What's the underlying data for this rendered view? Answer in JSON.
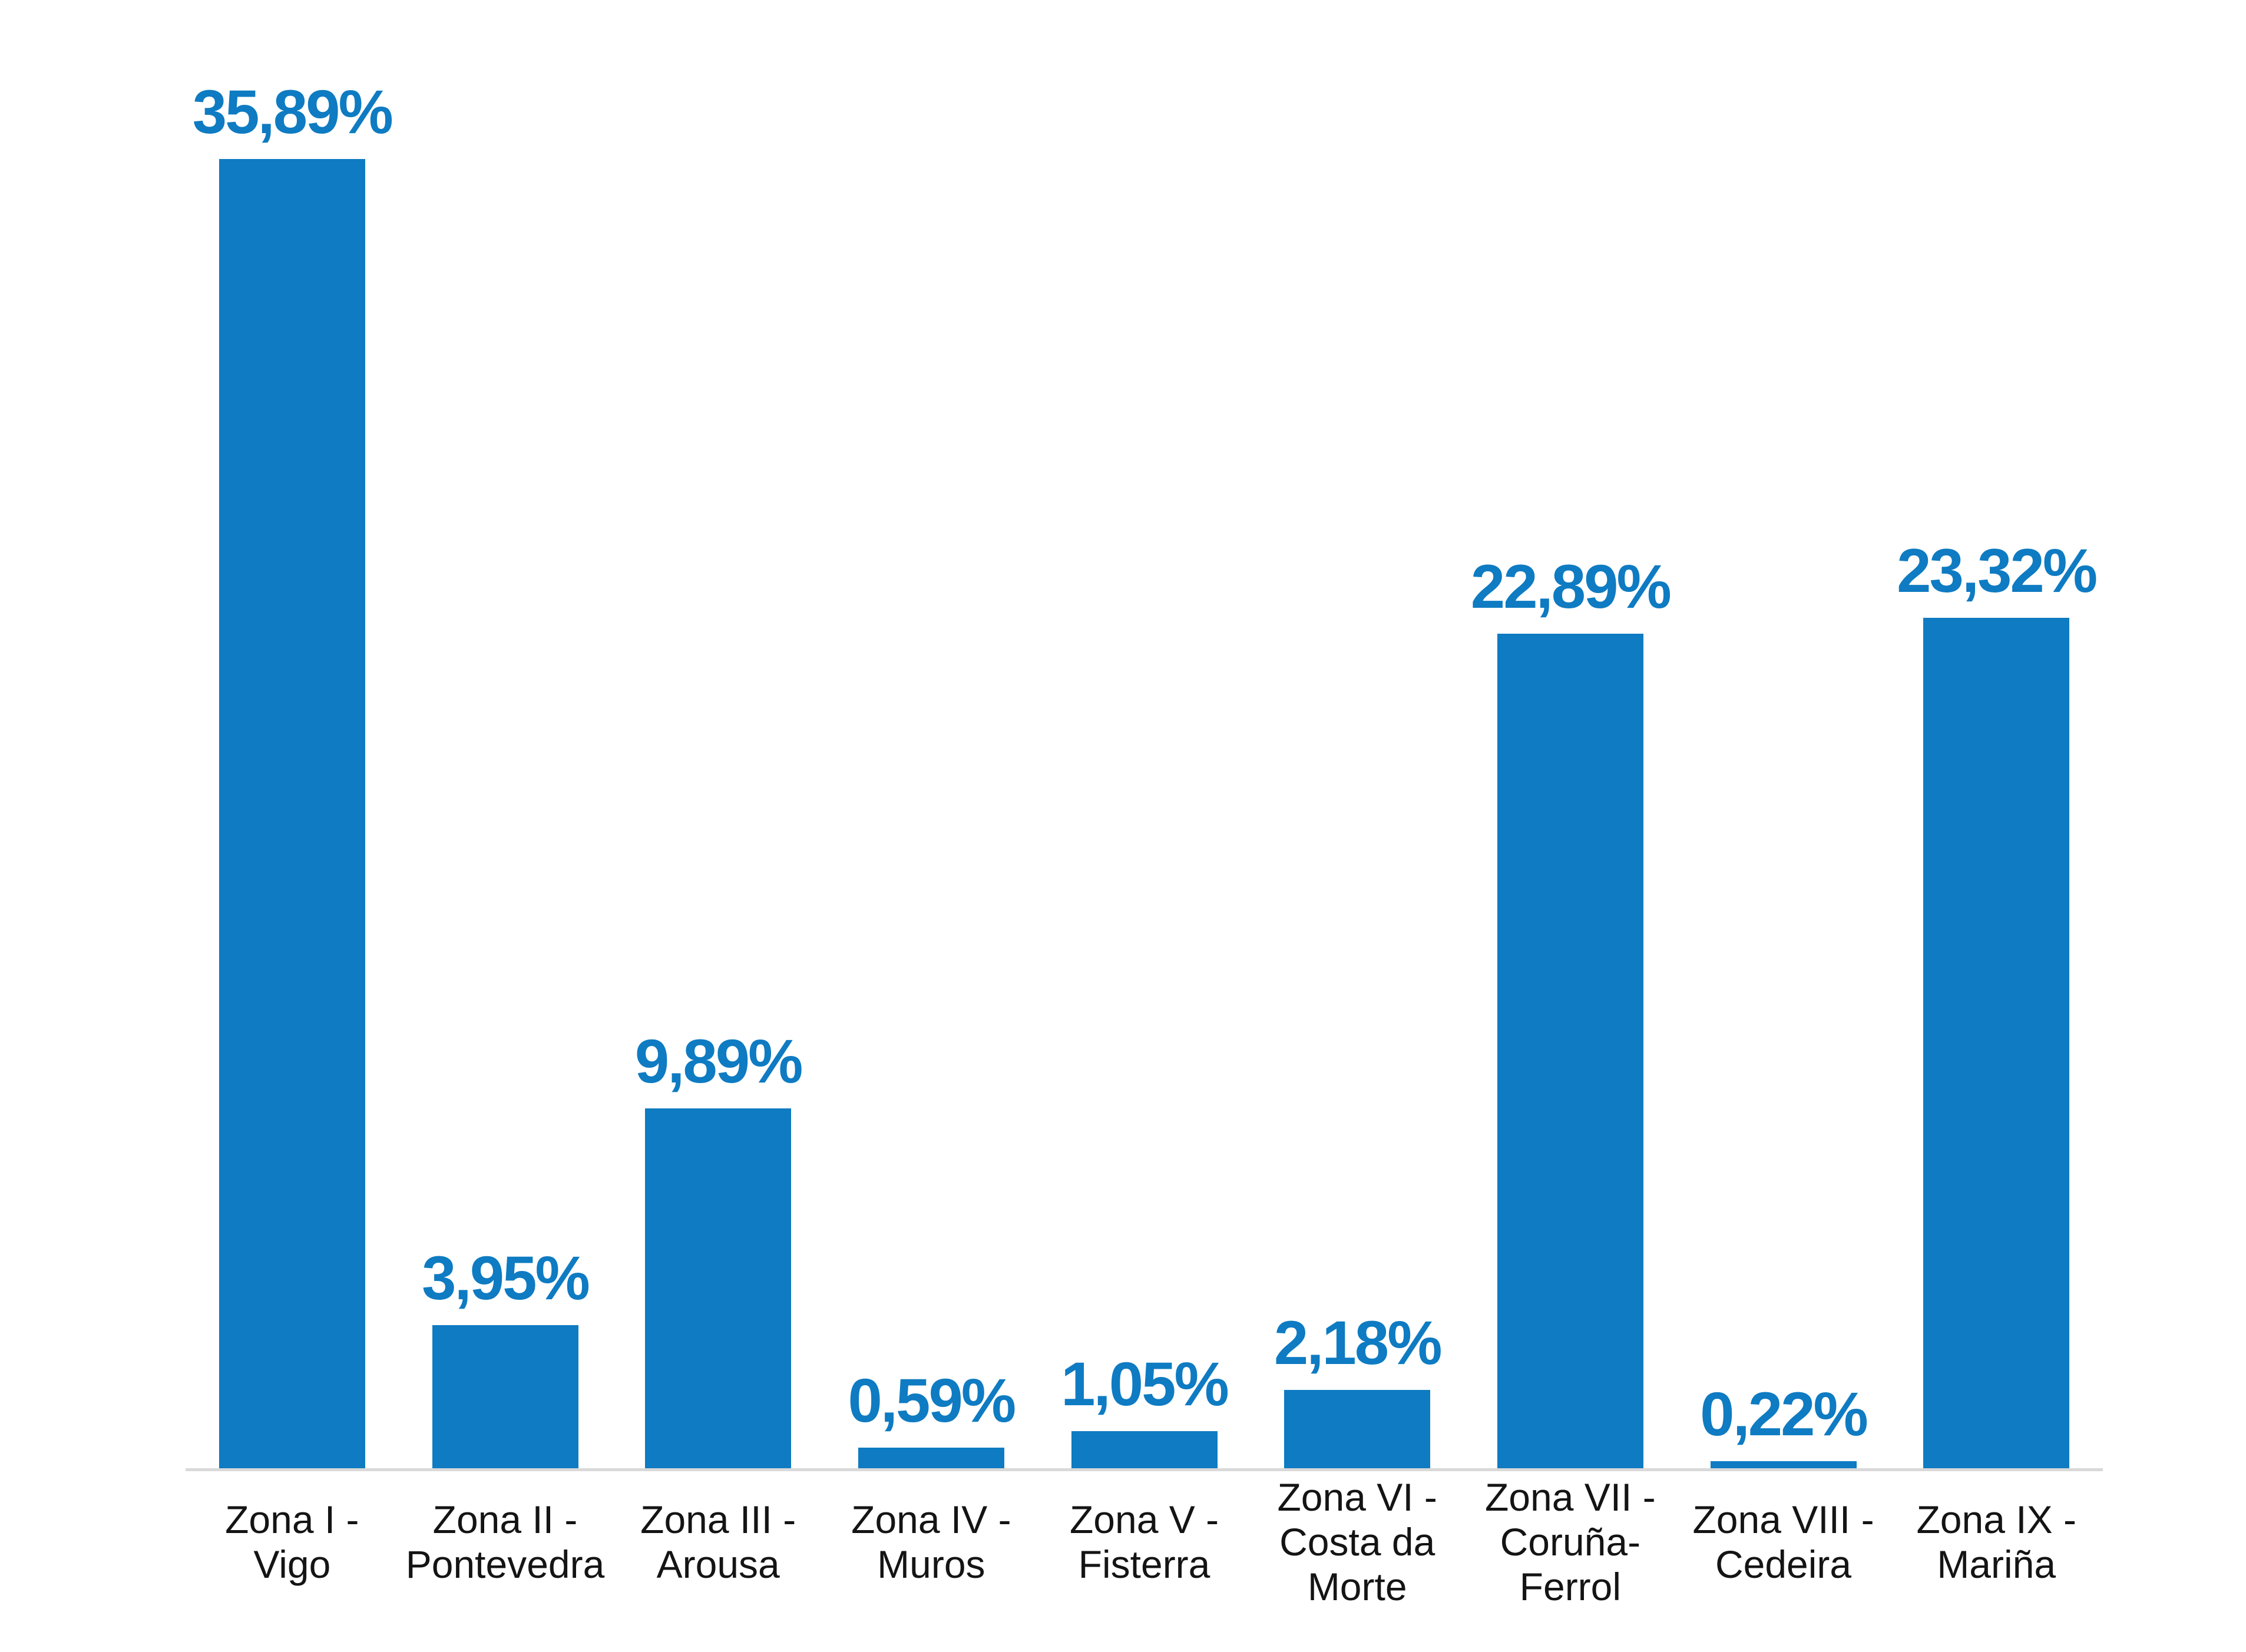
{
  "chart_data": {
    "type": "bar",
    "title": "",
    "xlabel": "",
    "ylabel": "",
    "categories": [
      "Zona I - Vigo",
      "Zona II - Pontevedra",
      "Zona III - Arousa",
      "Zona IV - Muros",
      "Zona V - Fisterra",
      "Zona VI - Costa da Morte",
      "Zona VII - Coruña-Ferrol",
      "Zona VIII - Cedeira",
      "Zona IX - Mariña"
    ],
    "category_lines": [
      [
        "Zona I - Vigo"
      ],
      [
        "Zona II -",
        "Pontevedra"
      ],
      [
        "Zona III -",
        "Arousa"
      ],
      [
        "Zona IV -",
        "Muros"
      ],
      [
        "Zona V -",
        "Fisterra"
      ],
      [
        "Zona VI -",
        "Costa da",
        "Morte"
      ],
      [
        "Zona VII -",
        "Coruña-",
        "Ferrol"
      ],
      [
        "Zona VIII -",
        "Cedeira"
      ],
      [
        "Zona IX -",
        "Mariña"
      ]
    ],
    "values": [
      35.89,
      3.95,
      9.89,
      0.59,
      1.05,
      2.18,
      22.89,
      0.22,
      23.32
    ],
    "value_labels": [
      "35,89%",
      "3,95%",
      "9,89%",
      "0,59%",
      "1,05%",
      "2,18%",
      "22,89%",
      "0,22%",
      "23,32%"
    ],
    "ylim": [
      0,
      40
    ],
    "grid": false,
    "legend": false,
    "bar_color": "#0e7bc2",
    "value_label_color": "#0e7bc2",
    "axis_line_color": "#d9d9d9",
    "x_label_color": "#141414"
  }
}
